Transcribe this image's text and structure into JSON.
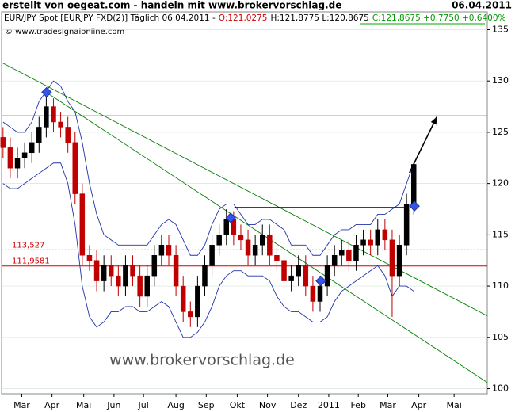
{
  "chart_data": {
    "type": "candlestick",
    "title": "erstellt von oegeat.com - handeln mit www.brokervorschlag.de",
    "date": "06.04.2011",
    "legend_parts": [
      {
        "text": "EUR/JPY Spot [EURJPY FXD(2)] Täglich 06.04.2011 -",
        "color": "#000000"
      },
      {
        "text": "O:121,0275",
        "color": "#d00000"
      },
      {
        "text": "H:121,8775 L:120,8675",
        "color": "#000000"
      },
      {
        "text": "C:121,8675 +0,7750 +0,6400%",
        "color": "#009900"
      }
    ],
    "copyright": "© www.tradesignalonline.com",
    "watermark": "www.brokervorschlag.de",
    "x": [
      0,
      1,
      2,
      3,
      4,
      5,
      6,
      7,
      8,
      9,
      10,
      11,
      12,
      13,
      14,
      15,
      16,
      17,
      18,
      19,
      20,
      21,
      22,
      23,
      24,
      25,
      26,
      27,
      28,
      29,
      30,
      31,
      32,
      33,
      34,
      35,
      36,
      37,
      38,
      39,
      40,
      41,
      42,
      43,
      44,
      45,
      46,
      47,
      48,
      49,
      50,
      51,
      52,
      53,
      54,
      55,
      56,
      57
    ],
    "open": [
      124.5,
      123.5,
      121.5,
      122.5,
      123,
      124,
      125.5,
      127.5,
      126,
      125.5,
      124,
      119,
      113,
      112.5,
      110.5,
      112,
      111,
      110,
      112,
      111,
      109,
      111,
      113,
      114,
      113,
      110,
      107.5,
      107,
      110,
      112,
      114,
      115,
      116.5,
      115,
      114.5,
      113,
      114,
      115,
      113,
      112.5,
      110.5,
      111,
      112,
      110,
      108.5,
      110,
      112,
      113,
      113.5,
      112.5,
      114,
      114.5,
      114,
      115.5,
      114.5,
      111,
      114,
      118
    ],
    "high": [
      125.5,
      124.5,
      123.5,
      124,
      125,
      126.5,
      128.5,
      128.3,
      127,
      126.5,
      125,
      120,
      114,
      113.5,
      113,
      113,
      112,
      113,
      113,
      112,
      112,
      114,
      115,
      115,
      114,
      111,
      108.5,
      111,
      113,
      115,
      116,
      117.5,
      117.3,
      116,
      115.5,
      115,
      116,
      116,
      114,
      113.5,
      112,
      113,
      113,
      111,
      111,
      113,
      114,
      114.5,
      114.5,
      115,
      115.5,
      115.5,
      116.5,
      116.5,
      115.5,
      115,
      119,
      122
    ],
    "low": [
      122.5,
      120.5,
      120.5,
      121.5,
      122,
      123,
      124.5,
      125,
      124.5,
      123,
      118,
      112,
      111.5,
      109.5,
      109.5,
      110,
      109,
      109,
      110,
      108,
      108,
      110,
      112,
      112,
      109,
      106.5,
      106,
      106,
      109,
      111,
      113,
      114,
      114,
      113.5,
      112,
      112,
      113,
      112,
      111.5,
      109.5,
      109.5,
      110,
      109,
      107.5,
      107.5,
      109,
      111,
      112,
      111.5,
      111.5,
      113,
      113,
      113,
      113.5,
      107,
      110,
      113,
      117
    ],
    "close": [
      123.5,
      121.5,
      122.5,
      123,
      124,
      125.5,
      127.5,
      126,
      125.5,
      124,
      119,
      113,
      112.5,
      110.5,
      112,
      111,
      110,
      112,
      111,
      109,
      111,
      113,
      114,
      113,
      110,
      107.5,
      107,
      110,
      112,
      114,
      115,
      116.5,
      115,
      114.5,
      113,
      114,
      115,
      113,
      112.5,
      110.5,
      111,
      112,
      110,
      108.5,
      110,
      112,
      113,
      113.5,
      112.5,
      114,
      114.5,
      114,
      115.5,
      114.5,
      111,
      114,
      118,
      121.87
    ],
    "up_color": "#000000",
    "down_color": "#c00000",
    "bands": [
      {
        "values": [
          126,
          125.5,
          125,
          125,
          126,
          128,
          129,
          130,
          129.5,
          128,
          127,
          124,
          120,
          117,
          115,
          114.5,
          114,
          114,
          114,
          114,
          114,
          115,
          116,
          116.5,
          116,
          114.5,
          113,
          113,
          114,
          116,
          117.5,
          118,
          118,
          117,
          116,
          116,
          116.5,
          116.5,
          116,
          115.5,
          114,
          114,
          114,
          113,
          113,
          114,
          115,
          115.5,
          115.5,
          116,
          116,
          116,
          117,
          117,
          117.5,
          118,
          120,
          122
        ],
        "color": "#2233aa"
      },
      {
        "values": [
          120,
          119.5,
          119.5,
          120,
          120.5,
          121,
          121.5,
          122,
          122,
          120,
          116,
          110,
          107,
          106,
          106.5,
          107.5,
          107.5,
          108,
          108,
          107.5,
          107.5,
          108,
          108.5,
          108,
          106.5,
          105,
          105,
          105.5,
          106.5,
          108,
          110,
          111,
          111.5,
          111.5,
          111,
          111,
          111,
          110.5,
          109,
          108,
          107.5,
          107.5,
          107,
          106.5,
          106.5,
          107,
          108.5,
          109.5,
          110,
          110.5,
          111,
          111.5,
          112,
          111,
          109,
          110,
          110,
          109.5
        ],
        "color": "#2233aa"
      }
    ],
    "levels": [
      {
        "value": 126.6,
        "color": "#d00000"
      },
      {
        "value": 113.527,
        "label": "113,527",
        "color": "#d00000",
        "dashed": true
      },
      {
        "value": 111.9581,
        "label": "111,9581",
        "color": "#d00000"
      }
    ],
    "trendlines": [
      {
        "x": [
          -0.2,
          67.2
        ],
        "values": [
          131.8,
          107.1
        ],
        "color": "#008000"
      },
      {
        "x": [
          6.1,
          67.2
        ],
        "values": [
          128.85,
          100.6
        ],
        "color": "#008000"
      },
      {
        "x": [
          32.1,
          56.2
        ],
        "values": [
          117.65,
          117.65
        ],
        "color": "#000000"
      }
    ],
    "arrow": {
      "x": [
        56.4,
        60.2
      ],
      "values": [
        121.05,
        126.5
      ],
      "color": "#000000"
    },
    "markers": {
      "x": [
        6.05,
        31.6,
        44.1,
        57.1
      ],
      "values": [
        128.9,
        116.65,
        110.5,
        117.8
      ],
      "color": "#3355ee"
    },
    "xlim": [
      -0.2,
      67.2
    ],
    "xticks": [
      {
        "value": 2.6,
        "label": "Mär"
      },
      {
        "value": 6.8,
        "label": "Apr"
      },
      {
        "value": 11.2,
        "label": "Mai"
      },
      {
        "value": 15.4,
        "label": "Jun"
      },
      {
        "value": 19.5,
        "label": "Jul"
      },
      {
        "value": 24,
        "label": "Aug"
      },
      {
        "value": 28.2,
        "label": "Sep"
      },
      {
        "value": 32.5,
        "label": "Okt"
      },
      {
        "value": 36.7,
        "label": "Nov"
      },
      {
        "value": 41,
        "label": "Dez"
      },
      {
        "value": 45.2,
        "label": "2011"
      },
      {
        "value": 49.3,
        "label": "Feb"
      },
      {
        "value": 53.4,
        "label": "Mär"
      },
      {
        "value": 57.7,
        "label": "Apr"
      },
      {
        "value": 62.6,
        "label": "Mai"
      }
    ],
    "ylim": [
      99.5,
      135.5
    ],
    "yticks": [
      100,
      105,
      110,
      115,
      120,
      125,
      130,
      135
    ],
    "grid": true
  }
}
